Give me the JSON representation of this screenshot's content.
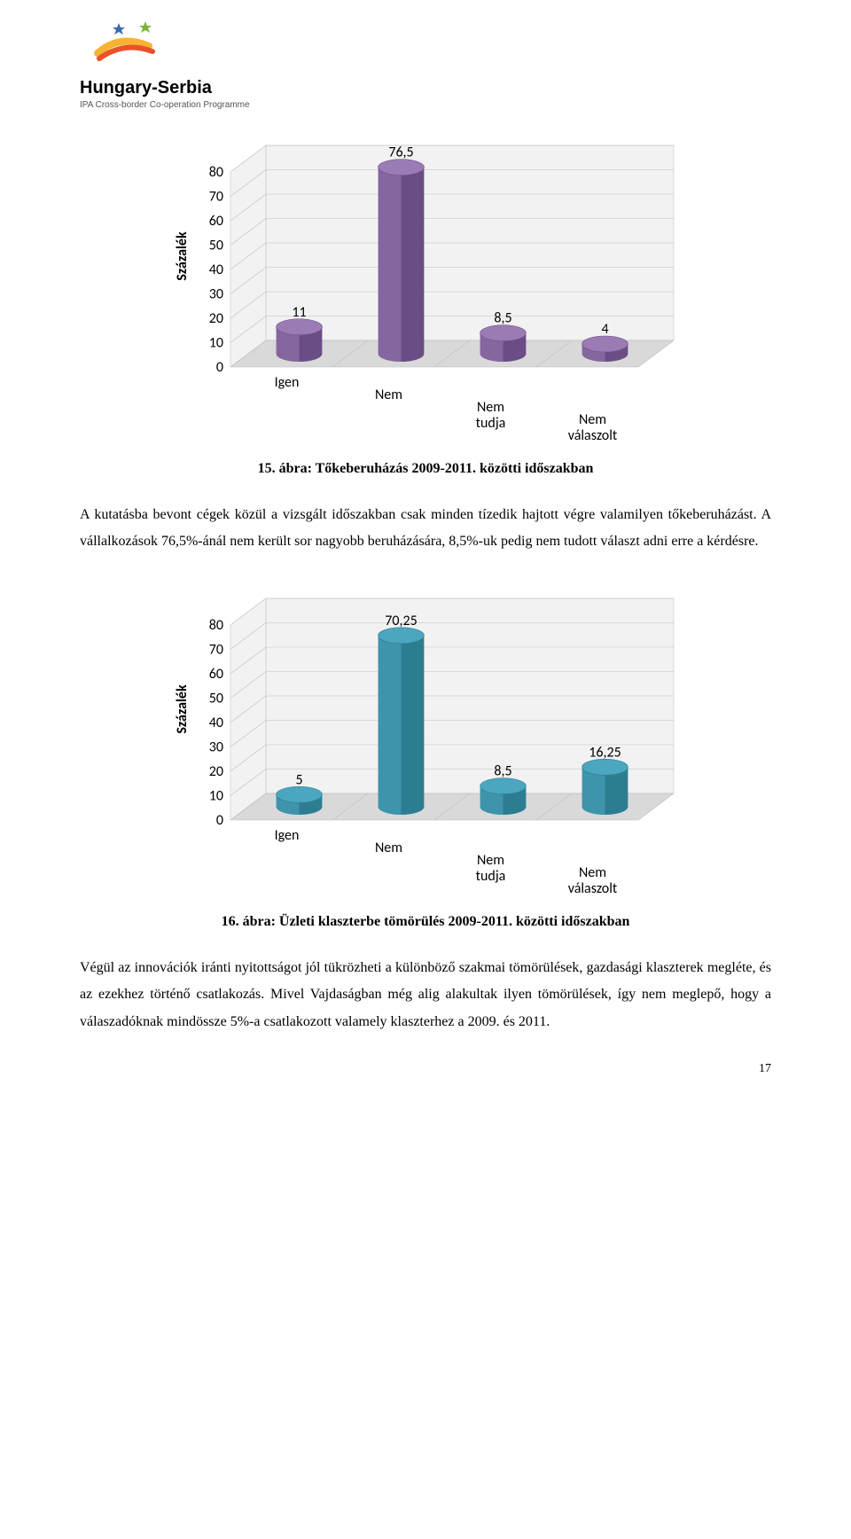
{
  "logo": {
    "title": "Hungary-Serbia",
    "subtitle": "IPA Cross-border Co-operation Programme",
    "colors": {
      "yellow": "#f9b233",
      "orange": "#e8522b",
      "blue": "#3a69b0",
      "green": "#7fb239"
    }
  },
  "chart1": {
    "type": "3d-cylinder-bar",
    "y_axis_label": "Százalék",
    "y_ticks": [
      0,
      10,
      20,
      30,
      40,
      50,
      60,
      70,
      80
    ],
    "categories": [
      "Igen",
      "Nem",
      "Nem tudja",
      "Nem válaszolt"
    ],
    "values": [
      11,
      76.5,
      8.5,
      4
    ],
    "value_labels": [
      "11",
      "76,5",
      "8,5",
      "4"
    ],
    "bar_color_light": "#9b7bb5",
    "bar_color_dark": "#6a4d87",
    "floor_color": "#d9d9d9",
    "wall_color": "#f2f2f2",
    "grid_color": "#bfbfbf"
  },
  "caption1": "15. ábra: Tőkeberuházás 2009-2011. közötti időszakban",
  "para1": "A kutatásba bevont cégek közül a vizsgált időszakban csak minden tízedik hajtott végre valamilyen tőkeberuházást. A vállalkozások 76,5%-ánál nem került sor nagyobb beruházására, 8,5%-uk pedig nem tudott választ adni erre a kérdésre.",
  "chart2": {
    "type": "3d-cylinder-bar",
    "y_axis_label": "Százalék",
    "y_ticks": [
      0,
      10,
      20,
      30,
      40,
      50,
      60,
      70,
      80
    ],
    "categories": [
      "Igen",
      "Nem",
      "Nem tudja",
      "Nem válaszolt"
    ],
    "values": [
      5,
      70.25,
      8.5,
      16.25
    ],
    "value_labels": [
      "5",
      "70,25",
      "8,5",
      "16,25"
    ],
    "bar_color_light": "#4aa7bf",
    "bar_color_dark": "#2d7d92",
    "floor_color": "#d9d9d9",
    "wall_color": "#f2f2f2",
    "grid_color": "#bfbfbf"
  },
  "caption2": "16. ábra: Üzleti klaszterbe tömörülés 2009-2011. közötti időszakban",
  "para2": "Végül az innovációk iránti nyitottságot jól tükrözheti a különböző szakmai tömörülések, gazdasági klaszterek megléte, és az ezekhez történő csatlakozás. Mivel Vajdaságban még alig alakultak ilyen tömörülések, így nem meglepő, hogy a válaszadóknak mindössze 5%-a csatlakozott valamely klaszterhez a 2009. és 2011.",
  "page_number": "17"
}
